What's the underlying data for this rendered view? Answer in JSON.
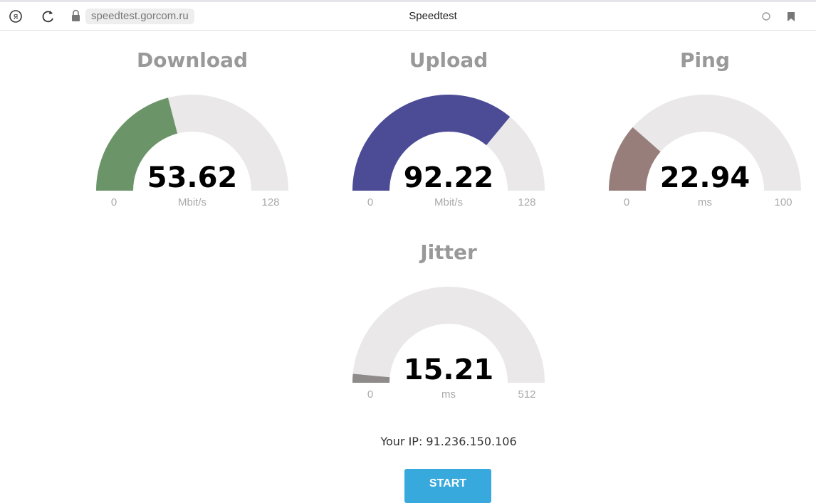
{
  "browser": {
    "url": "speedtest.gorcom.ru",
    "tab_title": "Speedtest"
  },
  "gauges": [
    {
      "title": "Download",
      "value": 53.62,
      "min": 0,
      "max": 128,
      "unit": "Mbit/s",
      "color": "#6b9568"
    },
    {
      "title": "Upload",
      "value": 92.22,
      "min": 0,
      "max": 128,
      "unit": "Mbit/s",
      "color": "#4b4b96"
    },
    {
      "title": "Ping",
      "value": 22.94,
      "min": 0,
      "max": 100,
      "unit": "ms",
      "color": "#977e7b"
    },
    {
      "title": "Jitter",
      "value": 15.21,
      "min": 0,
      "max": 512,
      "unit": "ms",
      "color": "#8f8b8b"
    }
  ],
  "ip_line": "Your IP: 91.236.150.106",
  "button": "START"
}
